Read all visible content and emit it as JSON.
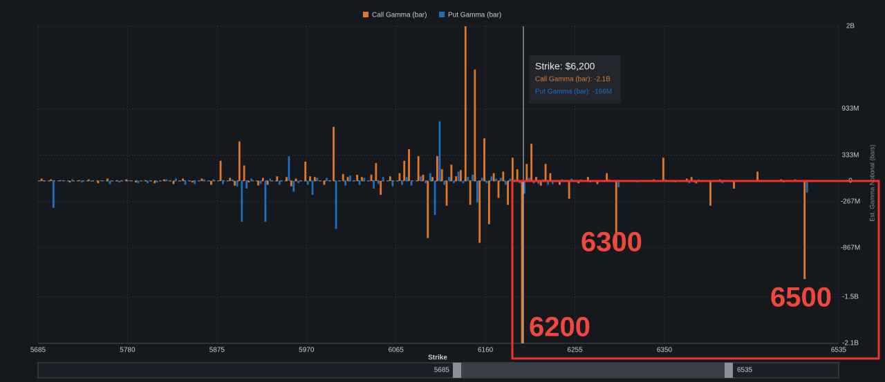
{
  "chart_data": {
    "type": "bar",
    "legend": [
      {
        "name": "Call Gamma (bar)",
        "color": "#e0782a"
      },
      {
        "name": "Put Gamma (bar)",
        "color": "#1f6fbf"
      }
    ],
    "xlabel": "Strike",
    "ylabel": "Est. Gamma Notional (bars)",
    "x": [
      5690,
      5700,
      5710,
      5720,
      5730,
      5740,
      5750,
      5760,
      5770,
      5780,
      5790,
      5800,
      5810,
      5820,
      5830,
      5840,
      5850,
      5860,
      5870,
      5880,
      5890,
      5895,
      5900,
      5905,
      5910,
      5920,
      5925,
      5930,
      5940,
      5950,
      5955,
      5960,
      5970,
      5975,
      5980,
      5990,
      6000,
      6010,
      6015,
      6025,
      6030,
      6040,
      6045,
      6050,
      6060,
      6070,
      6075,
      6080,
      6090,
      6095,
      6100,
      6105,
      6110,
      6115,
      6120,
      6125,
      6130,
      6135,
      6140,
      6145,
      6150,
      6155,
      6160,
      6165,
      6170,
      6175,
      6180,
      6185,
      6190,
      6195,
      6200,
      6205,
      6210,
      6215,
      6220,
      6225,
      6230,
      6240,
      6250,
      6260,
      6270,
      6280,
      6290,
      6300,
      6320,
      6340,
      6350,
      6360,
      6375,
      6380,
      6385,
      6400,
      6410,
      6425,
      6450,
      6475,
      6490,
      6500
    ],
    "series": [
      {
        "name": "Call Gamma (bar)",
        "color": "#e0782a",
        "values": [
          0.03,
          0.02,
          0.01,
          -0.02,
          0.01,
          0.02,
          -0.03,
          0.03,
          0.01,
          0.02,
          -0.02,
          0.01,
          -0.03,
          0.02,
          -0.04,
          0.03,
          -0.02,
          0.03,
          -0.05,
          0.26,
          0.04,
          -0.06,
          0.51,
          0.2,
          -0.02,
          -0.06,
          0.04,
          -0.05,
          0.06,
          0.05,
          -0.07,
          0.03,
          0.25,
          0.06,
          0.05,
          -0.05,
          0.7,
          0.09,
          0.05,
          0.08,
          0.05,
          0.08,
          0.23,
          -0.18,
          0.06,
          0.1,
          0.26,
          0.41,
          0.32,
          0.08,
          -0.74,
          0.05,
          0.32,
          0.15,
          -0.32,
          0.21,
          0.06,
          0.14,
          2.0,
          -0.31,
          1.44,
          -0.8,
          0.55,
          -0.56,
          0.1,
          -0.22,
          0.12,
          -0.31,
          0.3,
          0.15,
          -2.1,
          0.22,
          0.48,
          0.05,
          -0.06,
          0.22,
          0.1,
          -0.05,
          -0.23,
          -0.03,
          0.05,
          -0.04,
          0.1,
          -0.87,
          0.01,
          0.02,
          0.3,
          0.01,
          0.03,
          0.05,
          -0.03,
          -0.32,
          0.02,
          -0.1,
          0.12,
          0.02,
          0.02,
          -1.27
        ]
      },
      {
        "name": "Put Gamma (bar)",
        "color": "#1f6fbf",
        "values": [
          -0.01,
          -0.35,
          0.01,
          0.02,
          -0.02,
          -0.01,
          0.01,
          -0.04,
          -0.02,
          0.01,
          -0.03,
          -0.03,
          -0.02,
          0.02,
          0.03,
          -0.05,
          -0.04,
          0.02,
          0.02,
          -0.04,
          0.02,
          -0.07,
          -0.53,
          -0.1,
          0.03,
          -0.04,
          -0.53,
          0.03,
          -0.05,
          0.32,
          -0.14,
          -0.03,
          -0.05,
          -0.18,
          0.04,
          0.04,
          -0.62,
          -0.06,
          0.07,
          -0.05,
          0.04,
          -0.1,
          -0.04,
          0.05,
          -0.07,
          -0.05,
          0.05,
          -0.06,
          0.06,
          -0.03,
          0.1,
          -0.44,
          0.77,
          -0.05,
          0.05,
          -0.03,
          0.12,
          -0.03,
          0.05,
          0.08,
          -0.28,
          0.04,
          -0.03,
          0.06,
          0.03,
          0.04,
          -0.05,
          0.03,
          0.02,
          -0.03,
          -0.166,
          0.04,
          -0.03,
          -0.04,
          0.02,
          -0.05,
          -0.04,
          0.02,
          0.03,
          0.02,
          -0.02,
          0.01,
          0.02,
          -0.08,
          -0.02,
          -0.01,
          0.02,
          -0.02,
          -0.03,
          -0.02,
          0.02,
          0.01,
          -0.03,
          0.01,
          0.01,
          -0.02,
          0.01,
          -0.15
        ]
      }
    ],
    "xlim": [
      5685,
      6535
    ],
    "xticks": [
      5685,
      5780,
      5875,
      5970,
      6065,
      6160,
      6255,
      6350,
      6535
    ],
    "ylim": [
      -2.1,
      2
    ],
    "yticks": [
      {
        "value": 2,
        "label": "2B"
      },
      {
        "value": 0.933,
        "label": "933M"
      },
      {
        "value": 0.333,
        "label": "333M"
      },
      0,
      {
        "value": -0.267,
        "label": "-267M"
      },
      {
        "value": -0.867,
        "label": "-867M"
      },
      {
        "value": -1.5,
        "label": "-1.5B"
      },
      {
        "value": -2.1,
        "label": "-2.1B"
      }
    ],
    "grid": true,
    "tooltip": {
      "title": "Strike: $6,200",
      "call": "Call Gamma (bar): -2.1B",
      "put": "Put Gamma (bar): -166M"
    },
    "annotations": [
      "6300",
      "6200",
      "6500"
    ]
  }
}
